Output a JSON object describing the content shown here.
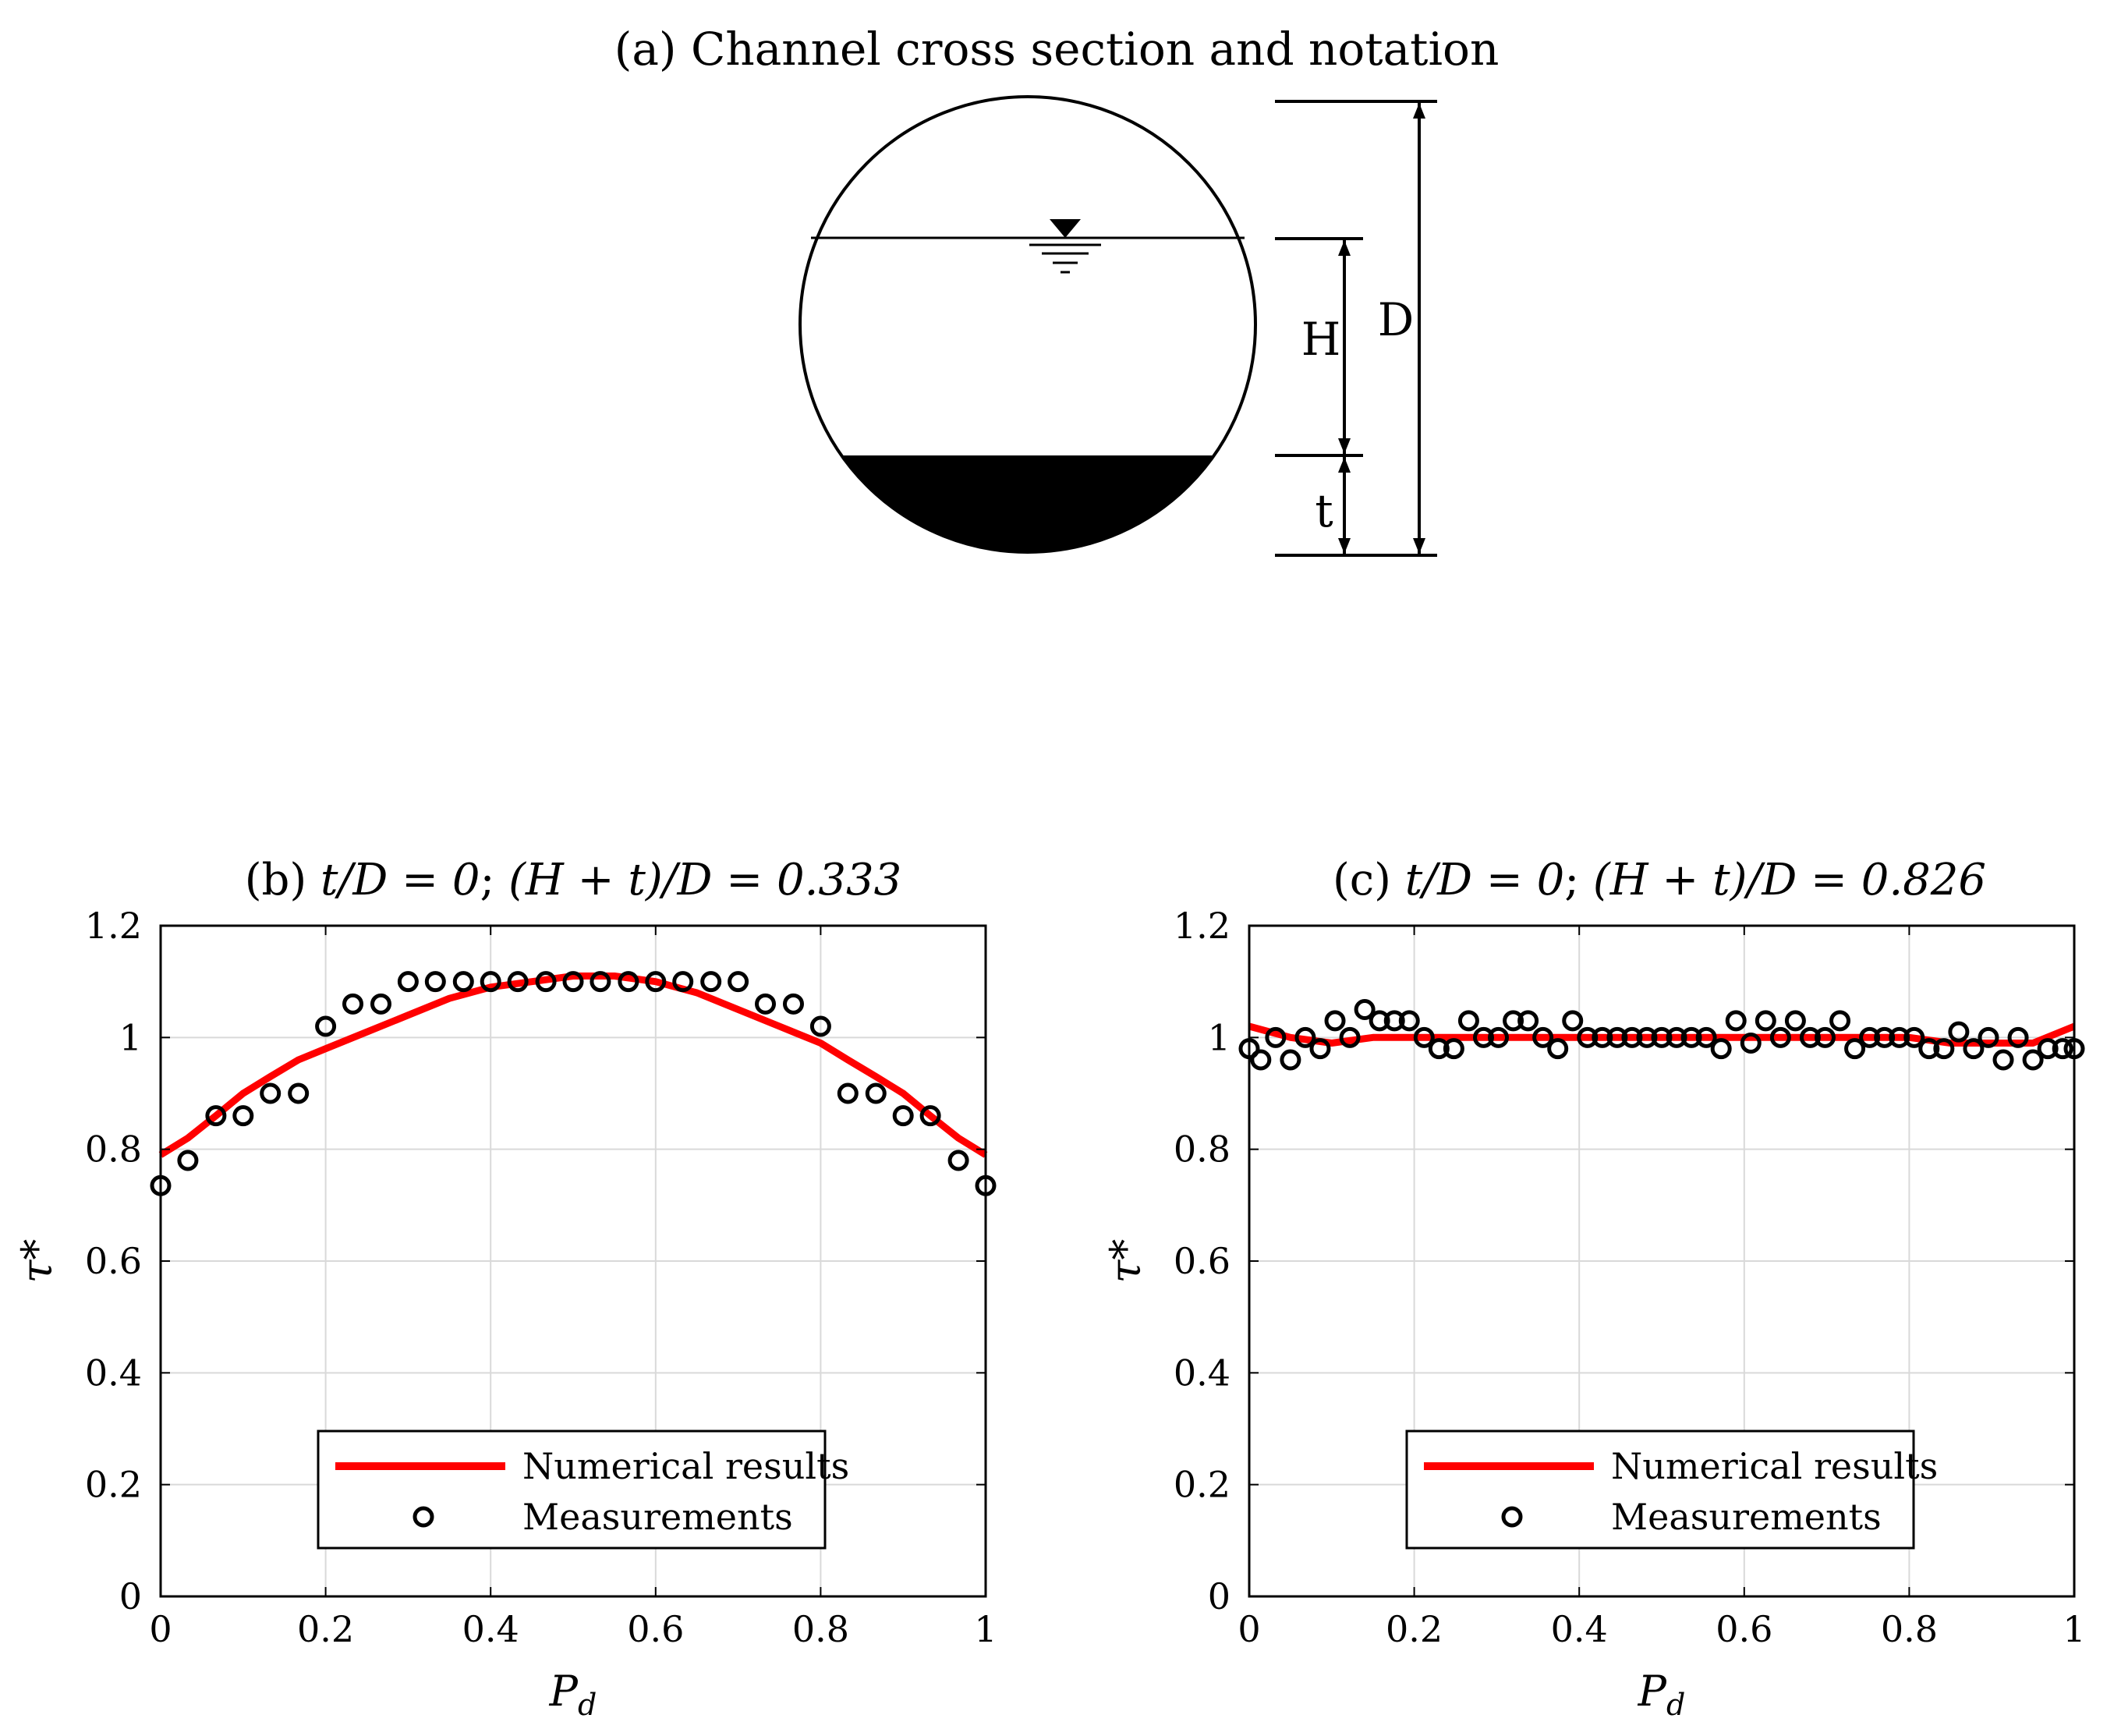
{
  "panel_a": {
    "title": "(a) Channel cross section and notation",
    "labels": {
      "H": "H",
      "D": "D",
      "t": "t"
    }
  },
  "chart_data": [
    {
      "type": "line",
      "id": "b",
      "title": {
        "prefix": "(b) ",
        "t_over_D": "t/D = 0",
        "sep": "; ",
        "ratio": "(H + t)/D = 0.333"
      },
      "xlabel": {
        "base": "P",
        "sub": "d"
      },
      "ylabel": "τ*",
      "xlim": [
        0,
        1
      ],
      "ylim": [
        0,
        1.2
      ],
      "xticks": [
        "0",
        "0.2",
        "0.4",
        "0.6",
        "0.8",
        "1"
      ],
      "yticks": [
        "0",
        "0.2",
        "0.4",
        "0.6",
        "0.8",
        "1",
        "1.2"
      ],
      "grid": true,
      "legend": {
        "position": "bottom-center",
        "entries": [
          "Numerical results",
          "Measurements"
        ]
      },
      "series": [
        {
          "name": "Numerical results",
          "kind": "line",
          "color": "#ff0000",
          "x": [
            0,
            0.033,
            0.067,
            0.1,
            0.133,
            0.167,
            0.2,
            0.25,
            0.3,
            0.35,
            0.4,
            0.45,
            0.5,
            0.55,
            0.6,
            0.65,
            0.7,
            0.75,
            0.8,
            0.833,
            0.867,
            0.9,
            0.933,
            0.967,
            1
          ],
          "y": [
            0.79,
            0.82,
            0.86,
            0.9,
            0.93,
            0.96,
            0.98,
            1.01,
            1.04,
            1.07,
            1.09,
            1.1,
            1.11,
            1.11,
            1.1,
            1.08,
            1.05,
            1.02,
            0.99,
            0.96,
            0.93,
            0.9,
            0.86,
            0.82,
            0.79
          ]
        },
        {
          "name": "Measurements",
          "kind": "scatter",
          "color": "#000000",
          "x": [
            0,
            0.033,
            0.067,
            0.1,
            0.133,
            0.167,
            0.2,
            0.233,
            0.267,
            0.3,
            0.333,
            0.367,
            0.4,
            0.433,
            0.467,
            0.5,
            0.533,
            0.567,
            0.6,
            0.633,
            0.667,
            0.7,
            0.733,
            0.767,
            0.8,
            0.833,
            0.867,
            0.9,
            0.933,
            0.967,
            1
          ],
          "y": [
            0.735,
            0.78,
            0.86,
            0.86,
            0.9,
            0.9,
            1.02,
            1.06,
            1.06,
            1.1,
            1.1,
            1.1,
            1.1,
            1.1,
            1.1,
            1.1,
            1.1,
            1.1,
            1.1,
            1.1,
            1.1,
            1.1,
            1.06,
            1.06,
            1.02,
            0.9,
            0.9,
            0.86,
            0.86,
            0.78,
            0.735
          ]
        }
      ]
    },
    {
      "type": "line",
      "id": "c",
      "title": {
        "prefix": "(c) ",
        "t_over_D": "t/D = 0",
        "sep": "; ",
        "ratio": "(H + t)/D = 0.826"
      },
      "xlabel": {
        "base": "P",
        "sub": "d"
      },
      "ylabel": "τ*",
      "xlim": [
        0,
        1
      ],
      "ylim": [
        0,
        1.2
      ],
      "xticks": [
        "0",
        "0.2",
        "0.4",
        "0.6",
        "0.8",
        "1"
      ],
      "yticks": [
        "0",
        "0.2",
        "0.4",
        "0.6",
        "0.8",
        "1",
        "1.2"
      ],
      "grid": true,
      "legend": {
        "position": "bottom-center",
        "entries": [
          "Numerical results",
          "Measurements"
        ]
      },
      "series": [
        {
          "name": "Numerical results",
          "kind": "line",
          "color": "#ff0000",
          "x": [
            0,
            0.05,
            0.1,
            0.15,
            0.2,
            0.3,
            0.4,
            0.5,
            0.6,
            0.7,
            0.8,
            0.85,
            0.9,
            0.95,
            1
          ],
          "y": [
            1.02,
            1.0,
            0.99,
            1.0,
            1.0,
            1.0,
            1.0,
            1.0,
            1.0,
            1.0,
            1.0,
            0.99,
            0.99,
            0.99,
            1.02
          ]
        },
        {
          "name": "Measurements",
          "kind": "scatter",
          "color": "#000000",
          "x": [
            0,
            0.014,
            0.032,
            0.05,
            0.068,
            0.086,
            0.104,
            0.122,
            0.14,
            0.158,
            0.176,
            0.194,
            0.212,
            0.23,
            0.248,
            0.266,
            0.284,
            0.302,
            0.32,
            0.338,
            0.356,
            0.374,
            0.392,
            0.41,
            0.428,
            0.446,
            0.464,
            0.482,
            0.5,
            0.518,
            0.536,
            0.554,
            0.572,
            0.59,
            0.608,
            0.626,
            0.644,
            0.662,
            0.68,
            0.698,
            0.716,
            0.734,
            0.752,
            0.77,
            0.788,
            0.806,
            0.824,
            0.842,
            0.86,
            0.878,
            0.896,
            0.914,
            0.932,
            0.95,
            0.968,
            0.986,
            1
          ],
          "y": [
            0.98,
            0.96,
            1.0,
            0.96,
            1.0,
            0.98,
            1.03,
            1.0,
            1.05,
            1.03,
            1.03,
            1.03,
            1.0,
            0.98,
            0.98,
            1.03,
            1.0,
            1.0,
            1.03,
            1.03,
            1.0,
            0.98,
            1.03,
            1.0,
            1.0,
            1.0,
            1.0,
            1.0,
            1.0,
            1.0,
            1.0,
            1.0,
            0.98,
            1.03,
            0.99,
            1.03,
            1.0,
            1.03,
            1.0,
            1.0,
            1.03,
            0.98,
            1.0,
            1.0,
            1.0,
            1.0,
            0.98,
            0.98,
            1.01,
            0.98,
            1.0,
            0.96,
            1.0,
            0.96,
            0.98,
            0.98,
            0.98
          ]
        }
      ]
    }
  ]
}
